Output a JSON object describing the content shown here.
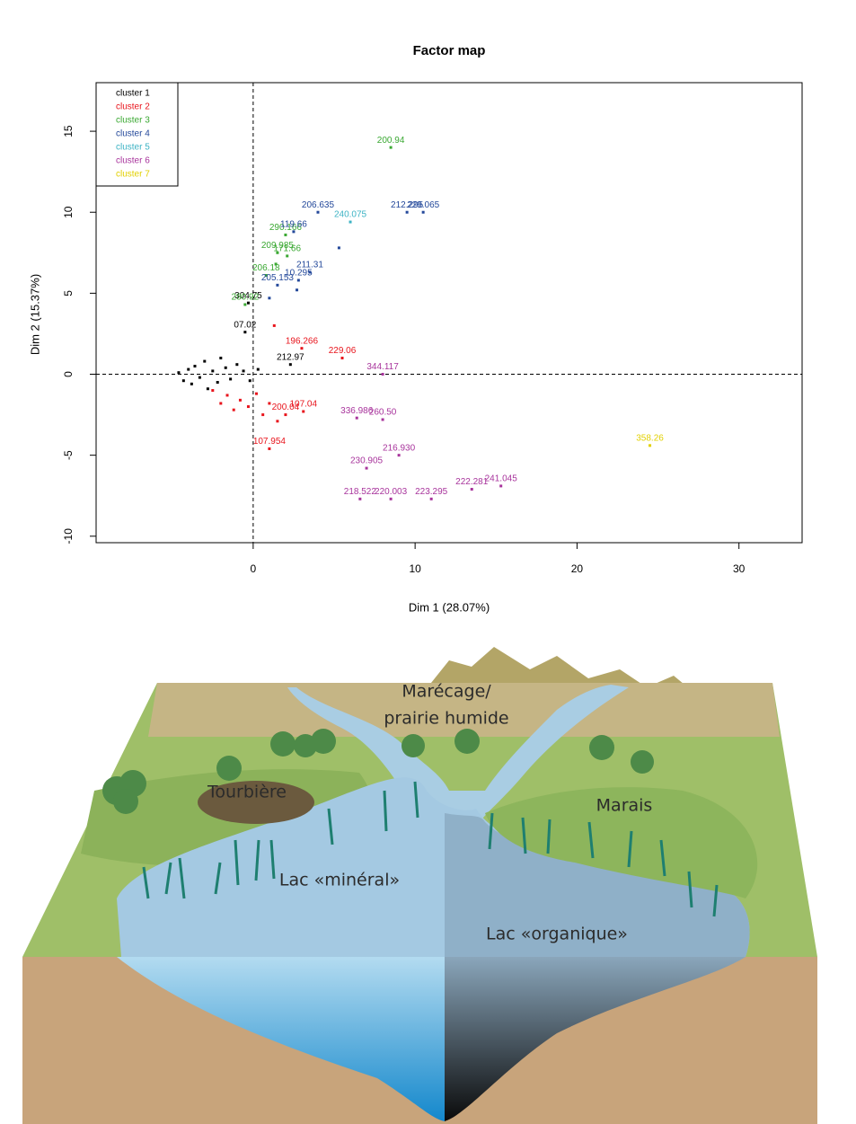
{
  "chart_data": {
    "type": "scatter",
    "title": "Factor map",
    "x_label": "Dim 1 (28.07%)",
    "y_label": "Dim 2 (15.37%)",
    "xlim": [
      -9.7,
      33.9
    ],
    "ylim": [
      -10.4,
      18
    ],
    "xticks": [
      0,
      10,
      20,
      30
    ],
    "yticks": [
      -10,
      -5,
      0,
      5,
      10,
      15
    ],
    "zero_lines": true,
    "legend": "top-left",
    "series": [
      {
        "name": "cluster 1",
        "color": "#000000",
        "x": [
          -4.6,
          -4.3,
          -4.0,
          -3.8,
          -3.6,
          -3.3,
          -3.0,
          -2.8,
          -2.5,
          -2.2,
          -2.0,
          -1.7,
          -1.4,
          -1.0,
          -0.6,
          -0.2,
          0.3,
          2.3,
          -0.5,
          -0.3
        ],
        "values": [
          0.1,
          -0.4,
          0.3,
          -0.6,
          0.5,
          -0.2,
          0.8,
          -0.9,
          0.2,
          -0.5,
          1.0,
          0.4,
          -0.3,
          0.6,
          0.2,
          -0.4,
          0.3,
          0.6,
          2.6,
          4.4
        ],
        "labels": [
          null,
          null,
          null,
          null,
          null,
          null,
          null,
          null,
          null,
          null,
          null,
          null,
          null,
          null,
          null,
          null,
          null,
          "212.97",
          "07.02",
          "304.75"
        ]
      },
      {
        "name": "cluster 2",
        "color": "#e8141c",
        "x": [
          -2.5,
          -2.0,
          -1.6,
          -1.2,
          -0.8,
          -0.3,
          0.2,
          0.6,
          1.0,
          1.5,
          3.0,
          5.5,
          3.1,
          2.0,
          1.0,
          1.3
        ],
        "values": [
          -1.0,
          -1.8,
          -1.3,
          -2.2,
          -1.6,
          -2.0,
          -1.2,
          -2.5,
          -1.8,
          -2.9,
          1.6,
          1.0,
          -2.3,
          -2.5,
          -4.6,
          3.0
        ],
        "labels": [
          null,
          null,
          null,
          null,
          null,
          null,
          null,
          null,
          null,
          null,
          "196.266",
          "229.06",
          "107.04",
          "200.04",
          "107.954",
          null
        ]
      },
      {
        "name": "cluster 3",
        "color": "#3aa832",
        "x": [
          8.5,
          2.0,
          1.5,
          2.1,
          0.8,
          -0.5,
          1.4
        ],
        "values": [
          14.0,
          8.6,
          7.5,
          7.3,
          6.1,
          4.3,
          6.8
        ],
        "labels": [
          "200.94",
          "290.166",
          "209.985",
          "171.66",
          "206.18",
          "280.92",
          null
        ]
      },
      {
        "name": "cluster 4",
        "color": "#23489a",
        "x": [
          4.0,
          2.5,
          9.5,
          10.5,
          2.8,
          1.5,
          3.5,
          5.3,
          2.7,
          1.0
        ],
        "values": [
          10.0,
          8.8,
          10.0,
          10.0,
          5.8,
          5.5,
          6.3,
          7.8,
          5.2,
          4.7
        ],
        "labels": [
          "206.635",
          "119.66",
          "212.295",
          "229.065",
          "10.295",
          "205.153",
          "211.31",
          null,
          null,
          null
        ]
      },
      {
        "name": "cluster 5",
        "color": "#3db3c4",
        "x": [
          6.0
        ],
        "values": [
          9.4
        ],
        "labels": [
          "240.075"
        ]
      },
      {
        "name": "cluster 6",
        "color": "#a8349c",
        "x": [
          8.0,
          6.4,
          8.0,
          9.0,
          7.0,
          6.6,
          8.5,
          11.0,
          13.5,
          15.3
        ],
        "values": [
          0,
          -2.7,
          -2.8,
          -5.0,
          -5.8,
          -7.7,
          -7.7,
          -7.7,
          -7.1,
          -6.9
        ],
        "labels": [
          "344.117",
          "336.986",
          "260.50",
          "216.930",
          "230.905",
          "218.522",
          "220.003",
          "223.295",
          "222.281",
          "241.045"
        ]
      },
      {
        "name": "cluster 7",
        "color": "#e2d000",
        "x": [
          24.5
        ],
        "values": [
          -4.4
        ],
        "labels": [
          "358.26"
        ]
      }
    ]
  },
  "illustration": {
    "labels": [
      "Marécage/",
      "prairie humide",
      "Tourbière",
      "Marais",
      "Lac «minéral»",
      "Lac «organique»"
    ]
  }
}
